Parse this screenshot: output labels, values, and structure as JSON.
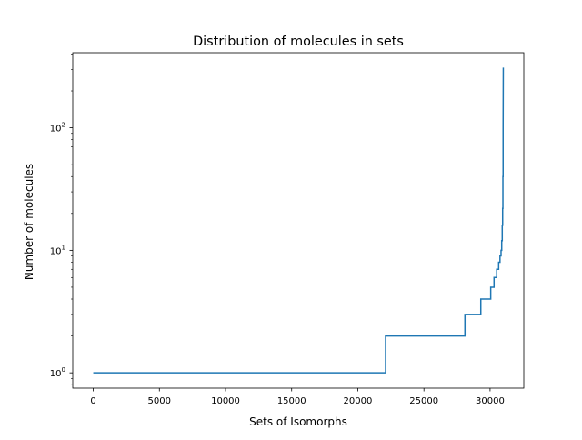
{
  "chart_data": {
    "type": "line",
    "title": "Distribution of molecules in sets",
    "xlabel": "Sets of Isomorphs",
    "ylabel": "Number of molecules",
    "xlim": [
      -1550,
      32550
    ],
    "ylim": [
      0.75,
      410
    ],
    "yscale": "log",
    "grid": false,
    "line_color": "#1f77b4",
    "x_ticks": [
      {
        "value": 0,
        "label": "0"
      },
      {
        "value": 5000,
        "label": "5000"
      },
      {
        "value": 10000,
        "label": "10000"
      },
      {
        "value": 15000,
        "label": "15000"
      },
      {
        "value": 20000,
        "label": "20000"
      },
      {
        "value": 25000,
        "label": "25000"
      },
      {
        "value": 30000,
        "label": "30000"
      }
    ],
    "y_ticks": [
      {
        "value": 1,
        "base": "10",
        "exp": "0"
      },
      {
        "value": 10,
        "base": "10",
        "exp": "1"
      },
      {
        "value": 100,
        "base": "10",
        "exp": "2"
      }
    ],
    "series": [
      {
        "x": [
          0,
          22100,
          22100,
          28100,
          28100,
          29300,
          29300,
          30050,
          30050,
          30300,
          30300,
          30500,
          30500,
          30650,
          30650,
          30750,
          30750,
          30830,
          30830,
          30880,
          30880,
          30920,
          30920,
          30950,
          30950,
          30970,
          30970,
          30985,
          30985,
          31000
        ],
        "y": [
          1,
          1,
          2,
          2,
          3,
          3,
          4,
          4,
          5,
          5,
          6,
          6,
          7,
          7,
          8,
          8,
          9,
          9,
          10,
          10,
          12,
          12,
          16,
          16,
          22,
          22,
          40,
          40,
          100,
          310
        ]
      }
    ]
  }
}
